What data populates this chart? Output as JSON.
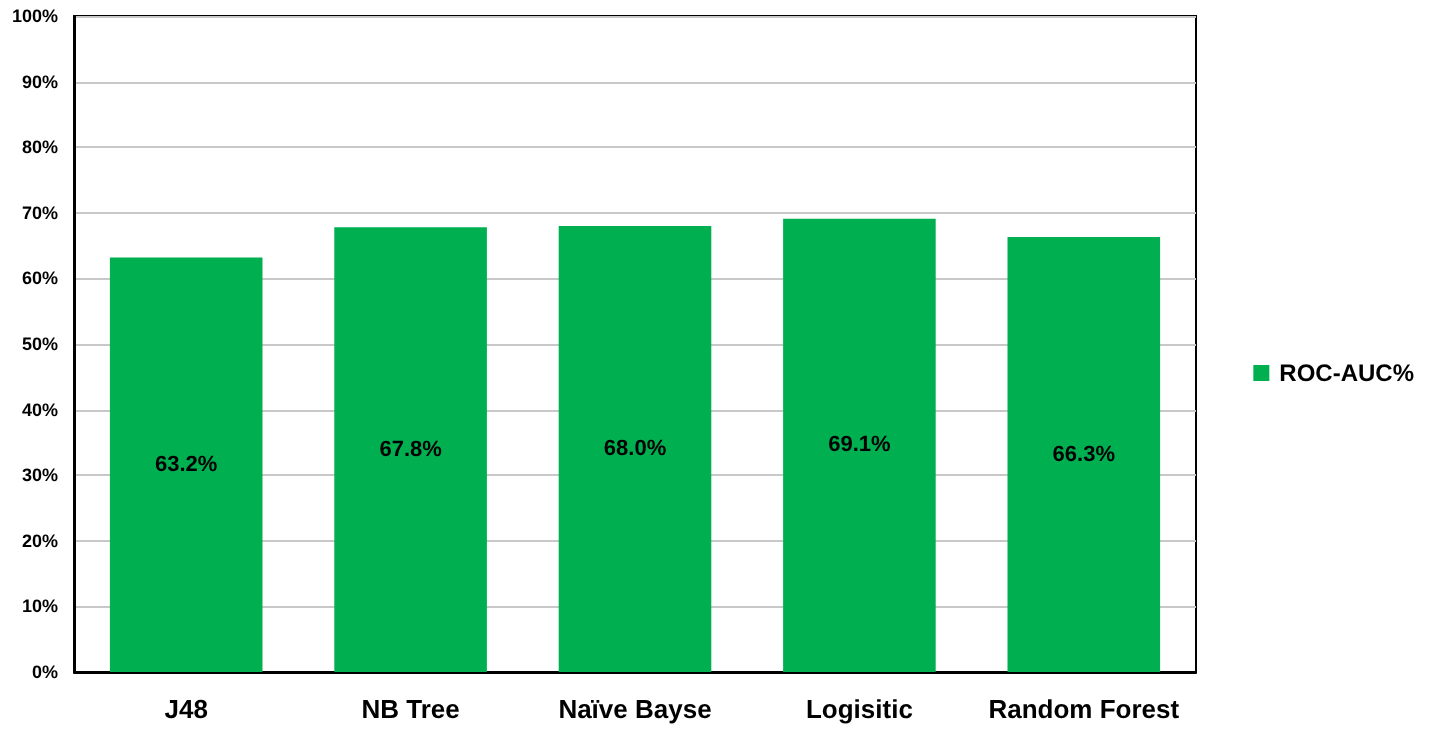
{
  "chart_data": {
    "type": "bar",
    "categories": [
      "J48",
      "NB Tree",
      "Naïve Bayse",
      "Logisitic",
      "Random Forest"
    ],
    "series": [
      {
        "name": "ROC-AUC%",
        "color": "#00b050",
        "values": [
          63.2,
          67.8,
          68.0,
          69.1,
          66.3
        ],
        "value_labels": [
          "63.2%",
          "67.8%",
          "68.0%",
          "69.1%",
          "66.3%"
        ]
      }
    ],
    "ylim": [
      0,
      100
    ],
    "yticks": [
      {
        "value": 0,
        "label": "0%"
      },
      {
        "value": 10,
        "label": "10%"
      },
      {
        "value": 20,
        "label": "20%"
      },
      {
        "value": 30,
        "label": "30%"
      },
      {
        "value": 40,
        "label": "40%"
      },
      {
        "value": 50,
        "label": "50%"
      },
      {
        "value": 60,
        "label": "60%"
      },
      {
        "value": 70,
        "label": "70%"
      },
      {
        "value": 80,
        "label": "80%"
      },
      {
        "value": 90,
        "label": "90%"
      },
      {
        "value": 100,
        "label": "100%"
      }
    ],
    "grid": true,
    "legend": "right"
  }
}
